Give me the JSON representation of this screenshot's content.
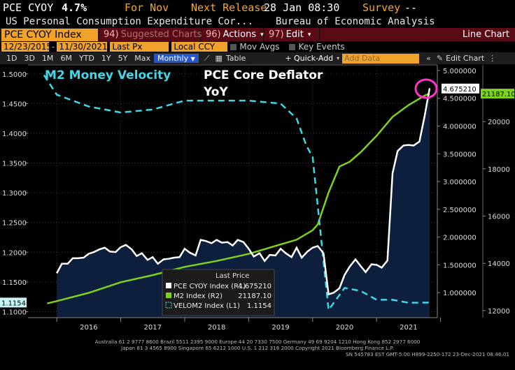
{
  "header": {
    "ticker": "PCE CYOY",
    "last": "4.7%",
    "period": "For Nov",
    "next_release_label": "Next Release",
    "next_release": "28 Jan 08:30",
    "survey_label": "Survey",
    "survey": "--",
    "description": "US Personal Consumption Expenditure Cor...",
    "source": "Bureau of Economic Analysis"
  },
  "toolbar": {
    "security": "PCE CYOY Index",
    "suggested_num": "94)",
    "suggested": "Suggested Charts",
    "actions_num": "96)",
    "actions": "Actions",
    "edit_num": "97)",
    "edit": "Edit",
    "chart_type": "Line Chart"
  },
  "settings": {
    "start_date": "12/23/2015",
    "end_date": "11/30/2021",
    "price_field": "Last Px",
    "currency": "Local CCY",
    "mov_avgs": "Mov Avgs",
    "key_events": "Key Events"
  },
  "periods": {
    "tabs": [
      "1D",
      "3D",
      "1M",
      "6M",
      "YTD",
      "1Y",
      "5Y",
      "Max"
    ],
    "frequency": "Monthly",
    "table": "Table",
    "quick_add": "+ Quick-Add",
    "add_data": "Add Data",
    "edit_chart": "Edit Chart"
  },
  "annotations": {
    "m2_velocity": "M2 Money Velocity",
    "pce_line1": "PCE Core Deflator",
    "pce_line2": "YoY"
  },
  "legend": {
    "title": "Last Price",
    "items": [
      {
        "label": "PCE CYOY Index  (R1)",
        "value": "4.675210",
        "color": "#ffffff"
      },
      {
        "label": "M2 Index  (R2)",
        "value": "21187.10",
        "color": "#7fd11b"
      },
      {
        "label": "VELOM2 Index  (L1)",
        "value": "1.1154",
        "color": "#40d8e8"
      }
    ]
  },
  "footer": {
    "line1": "Australia 61 2 9777 8600 Brazil 5511 2395 9000 Europe 44 20 7330 7500 Germany 49 69 9204 1210 Hong Kong 852 2977 6000",
    "line2": "Japan 81 3 4565 8900        Singapore 65 6212 1000        U.S. 1 212 318 2000        Copyright 2021 Bloomberg Finance L.P.",
    "line3": "SN 545783 EST  GMT-5:00 H899-2250-172 23-Dec-2021 08:46:01"
  },
  "chart_data": {
    "type": "line",
    "x_ticks": [
      "2016",
      "2017",
      "2018",
      "2019",
      "2020",
      "2021"
    ],
    "axes": {
      "L1": {
        "min": 1.09,
        "max": 1.515,
        "ticks": [
          "1.1000",
          "1.1500",
          "1.2000",
          "1.2500",
          "1.3000",
          "1.3500",
          "1.4000",
          "1.4500",
          "1.5000"
        ]
      },
      "R1": {
        "min": 0.55,
        "max": 5.1,
        "ticks": [
          "1.000000",
          "1.500000",
          "2.000000",
          "2.500000",
          "3.000000",
          "3.500000",
          "4.000000",
          "4.500000",
          "5.000000"
        ]
      },
      "R2": {
        "min": 11700,
        "max": 22400,
        "ticks": [
          "12000",
          "14000",
          "16000",
          "18000",
          "20000"
        ]
      }
    },
    "series": [
      {
        "name": "PCE CYOY Index (R1)",
        "axis": "R1",
        "color": "#ffffff",
        "fill": "#0d1f3c",
        "last": "4.675210",
        "x": [
          2016.0,
          2016.08,
          2016.17,
          2016.25,
          2016.33,
          2016.42,
          2016.5,
          2016.58,
          2016.67,
          2016.75,
          2016.83,
          2016.92,
          2017.0,
          2017.08,
          2017.17,
          2017.25,
          2017.33,
          2017.42,
          2017.5,
          2017.58,
          2017.67,
          2017.75,
          2017.83,
          2017.92,
          2018.0,
          2018.08,
          2018.17,
          2018.25,
          2018.33,
          2018.42,
          2018.5,
          2018.58,
          2018.67,
          2018.75,
          2018.83,
          2018.92,
          2019.0,
          2019.08,
          2019.17,
          2019.25,
          2019.33,
          2019.42,
          2019.5,
          2019.58,
          2019.67,
          2019.75,
          2019.83,
          2019.92,
          2020.0,
          2020.08,
          2020.17,
          2020.25,
          2020.33,
          2020.42,
          2020.5,
          2020.58,
          2020.67,
          2020.75,
          2020.83,
          2020.92,
          2021.0,
          2021.08,
          2021.17,
          2021.25,
          2021.33,
          2021.42,
          2021.5,
          2021.58,
          2021.67,
          2021.75,
          2021.83
        ],
        "values": [
          1.35,
          1.52,
          1.52,
          1.62,
          1.62,
          1.63,
          1.7,
          1.73,
          1.78,
          1.81,
          1.74,
          1.73,
          1.82,
          1.86,
          1.78,
          1.66,
          1.71,
          1.59,
          1.64,
          1.52,
          1.6,
          1.61,
          1.63,
          1.64,
          1.79,
          1.72,
          1.67,
          1.95,
          1.93,
          1.89,
          1.95,
          1.9,
          1.91,
          1.85,
          1.95,
          1.91,
          1.79,
          1.65,
          1.71,
          1.57,
          1.68,
          1.67,
          1.79,
          1.71,
          1.64,
          1.81,
          1.63,
          1.74,
          1.81,
          1.84,
          1.71,
          0.97,
          1.0,
          1.08,
          1.32,
          1.47,
          1.6,
          1.48,
          1.37,
          1.51,
          1.5,
          1.45,
          1.58,
          3.15,
          3.55,
          3.65,
          3.66,
          3.65,
          3.72,
          4.17,
          4.68
        ]
      },
      {
        "name": "M2 Index (R2)",
        "axis": "R2",
        "color": "#7fd11b",
        "last": "21187.10",
        "x": [
          2015.85,
          2016.0,
          2016.5,
          2017.0,
          2017.5,
          2018.0,
          2018.5,
          2019.0,
          2019.5,
          2019.75,
          2020.0,
          2020.08,
          2020.25,
          2020.42,
          2020.58,
          2020.75,
          2021.0,
          2021.25,
          2021.5,
          2021.75,
          2021.83
        ],
        "values": [
          12300,
          12400,
          12750,
          13200,
          13500,
          13850,
          14100,
          14400,
          14800,
          15000,
          15400,
          15650,
          17000,
          18100,
          18300,
          18700,
          19400,
          20200,
          20700,
          21100,
          21187
        ]
      },
      {
        "name": "VELOM2 Index (L1)",
        "axis": "L1",
        "color": "#40d8e8",
        "last": "1.1154",
        "x": [
          2015.8,
          2016.0,
          2016.5,
          2017.0,
          2017.5,
          2018.0,
          2018.5,
          2019.0,
          2019.5,
          2019.75,
          2019.9,
          2020.0,
          2020.25,
          2020.5,
          2020.75,
          2021.0,
          2021.25,
          2021.5,
          2021.83
        ],
        "values": [
          1.498,
          1.465,
          1.445,
          1.435,
          1.44,
          1.455,
          1.455,
          1.455,
          1.45,
          1.425,
          1.38,
          1.36,
          1.103,
          1.14,
          1.135,
          1.12,
          1.12,
          1.115,
          1.1154
        ]
      }
    ]
  }
}
